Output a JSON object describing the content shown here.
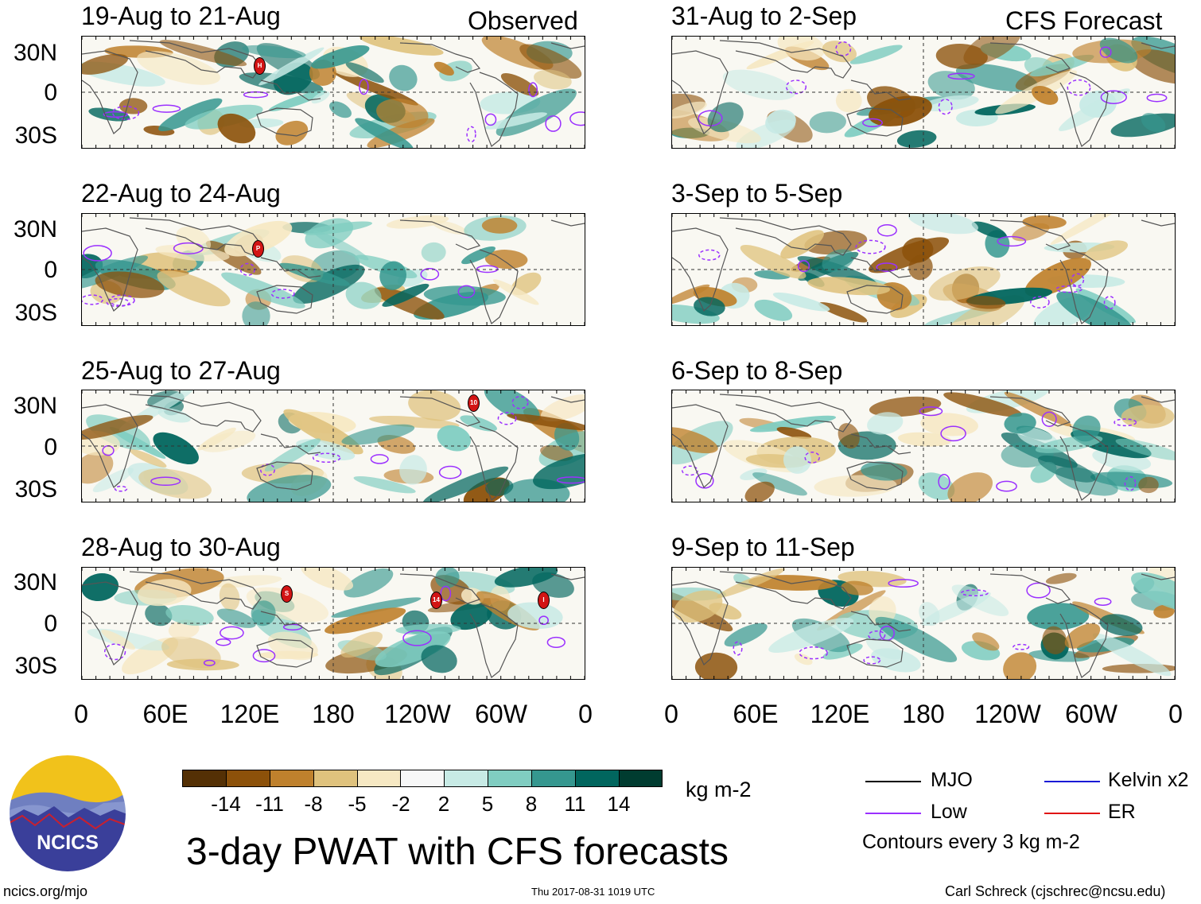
{
  "column_tags": {
    "observed": "Observed",
    "forecast": "CFS Forecast"
  },
  "lat_labels": [
    "30N",
    "0",
    "30S"
  ],
  "lon_labels": [
    "0",
    "60E",
    "120E",
    "180",
    "120W",
    "60W",
    "0"
  ],
  "panels": [
    {
      "title": "19-Aug to 21-Aug",
      "storms": [
        {
          "label": "H",
          "lon": 127,
          "lat": 20
        }
      ]
    },
    {
      "title": "22-Aug to 24-Aug",
      "storms": [
        {
          "label": "P",
          "lon": 126,
          "lat": 16
        }
      ]
    },
    {
      "title": "25-Aug to 27-Aug",
      "storms": [
        {
          "label": "10",
          "lon": 277,
          "lat": 31
        }
      ]
    },
    {
      "title": "28-Aug to 30-Aug",
      "storms": [
        {
          "label": "S",
          "lon": 146,
          "lat": 21
        },
        {
          "label": "14",
          "lon": 251,
          "lat": 17
        },
        {
          "label": "I",
          "lon": 327,
          "lat": 17
        }
      ]
    },
    {
      "title": "31-Aug to 2-Sep",
      "storms": []
    },
    {
      "title": "3-Sep to 5-Sep",
      "storms": []
    },
    {
      "title": "6-Sep to 8-Sep",
      "storms": []
    },
    {
      "title": "9-Sep to 11-Sep",
      "storms": []
    }
  ],
  "colorbar": {
    "units": "kg m-2",
    "ticks": [
      "-14",
      "-11",
      "-8",
      "-5",
      "-2",
      "2",
      "5",
      "8",
      "11",
      "14"
    ],
    "colors": [
      "#543005",
      "#8c510a",
      "#bf812d",
      "#dfc27d",
      "#f6e8c3",
      "#f7f7f7",
      "#c7eae5",
      "#80cdc1",
      "#35978f",
      "#01665e",
      "#003c30"
    ]
  },
  "legend": {
    "items": [
      {
        "label": "MJO",
        "color": "#000000"
      },
      {
        "label": "Kelvin x2",
        "color": "#1a1ad6"
      },
      {
        "label": "Low",
        "color": "#9b30ff"
      },
      {
        "label": "ER",
        "color": "#e01010"
      }
    ],
    "note": "Contours every 3 kg m-2"
  },
  "logo": {
    "text": "NCICS"
  },
  "main_title": "3-day PWAT with CFS forecasts",
  "footer": {
    "url": "ncics.org/mjo",
    "timestamp": "Thu 2017-08-31 1019 UTC",
    "author": "Carl Schreck (cjschrec@ncsu.edu)"
  }
}
